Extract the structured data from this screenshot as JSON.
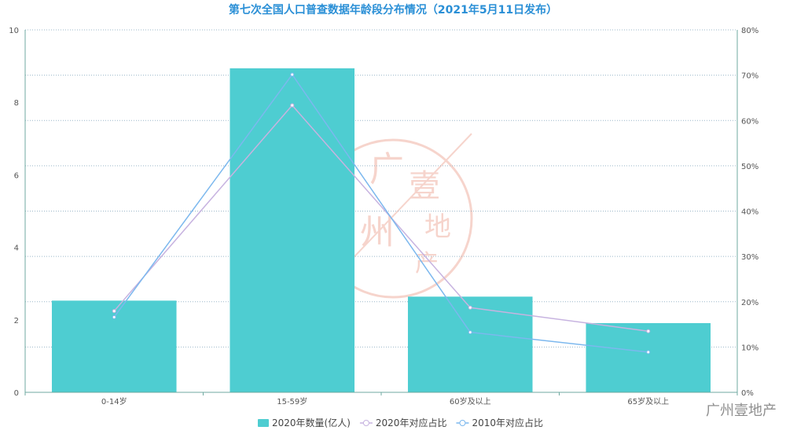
{
  "chart_data": {
    "type": "bar",
    "title": "第七次全国人口普查数据年龄段分布情况（2021年5月11日发布）",
    "categories": [
      "0-14岁",
      "15-59岁",
      "60岁及以上",
      "65岁及以上"
    ],
    "series": [
      {
        "name": "2020年数量(亿人)",
        "type": "bar",
        "axis": "left",
        "values": [
          2.53,
          8.94,
          2.64,
          1.91
        ]
      },
      {
        "name": "2020年对应占比",
        "type": "line",
        "axis": "right",
        "values": [
          17.95,
          63.35,
          18.7,
          13.5
        ]
      },
      {
        "name": "2010年对应占比",
        "type": "line",
        "axis": "right",
        "values": [
          16.6,
          70.14,
          13.26,
          8.87
        ]
      }
    ],
    "y_left": {
      "min": 0,
      "max": 10,
      "ticks": [
        0,
        2,
        4,
        6,
        8,
        10
      ]
    },
    "y_right": {
      "min": 0,
      "max": 80,
      "ticks": [
        "0%",
        "10%",
        "20%",
        "30%",
        "40%",
        "50%",
        "60%",
        "70%",
        "80%"
      ]
    },
    "grid": true,
    "legend_position": "bottom-center",
    "colors": {
      "bar": "#4ecdd1",
      "line2020": "#c7b3e0",
      "line2010": "#7cb8ee",
      "title": "#2a8fd6",
      "axis": "#6fa9a0"
    }
  },
  "watermark": {
    "text": "广州壹地产",
    "stamp_text": "广州壹地产"
  }
}
